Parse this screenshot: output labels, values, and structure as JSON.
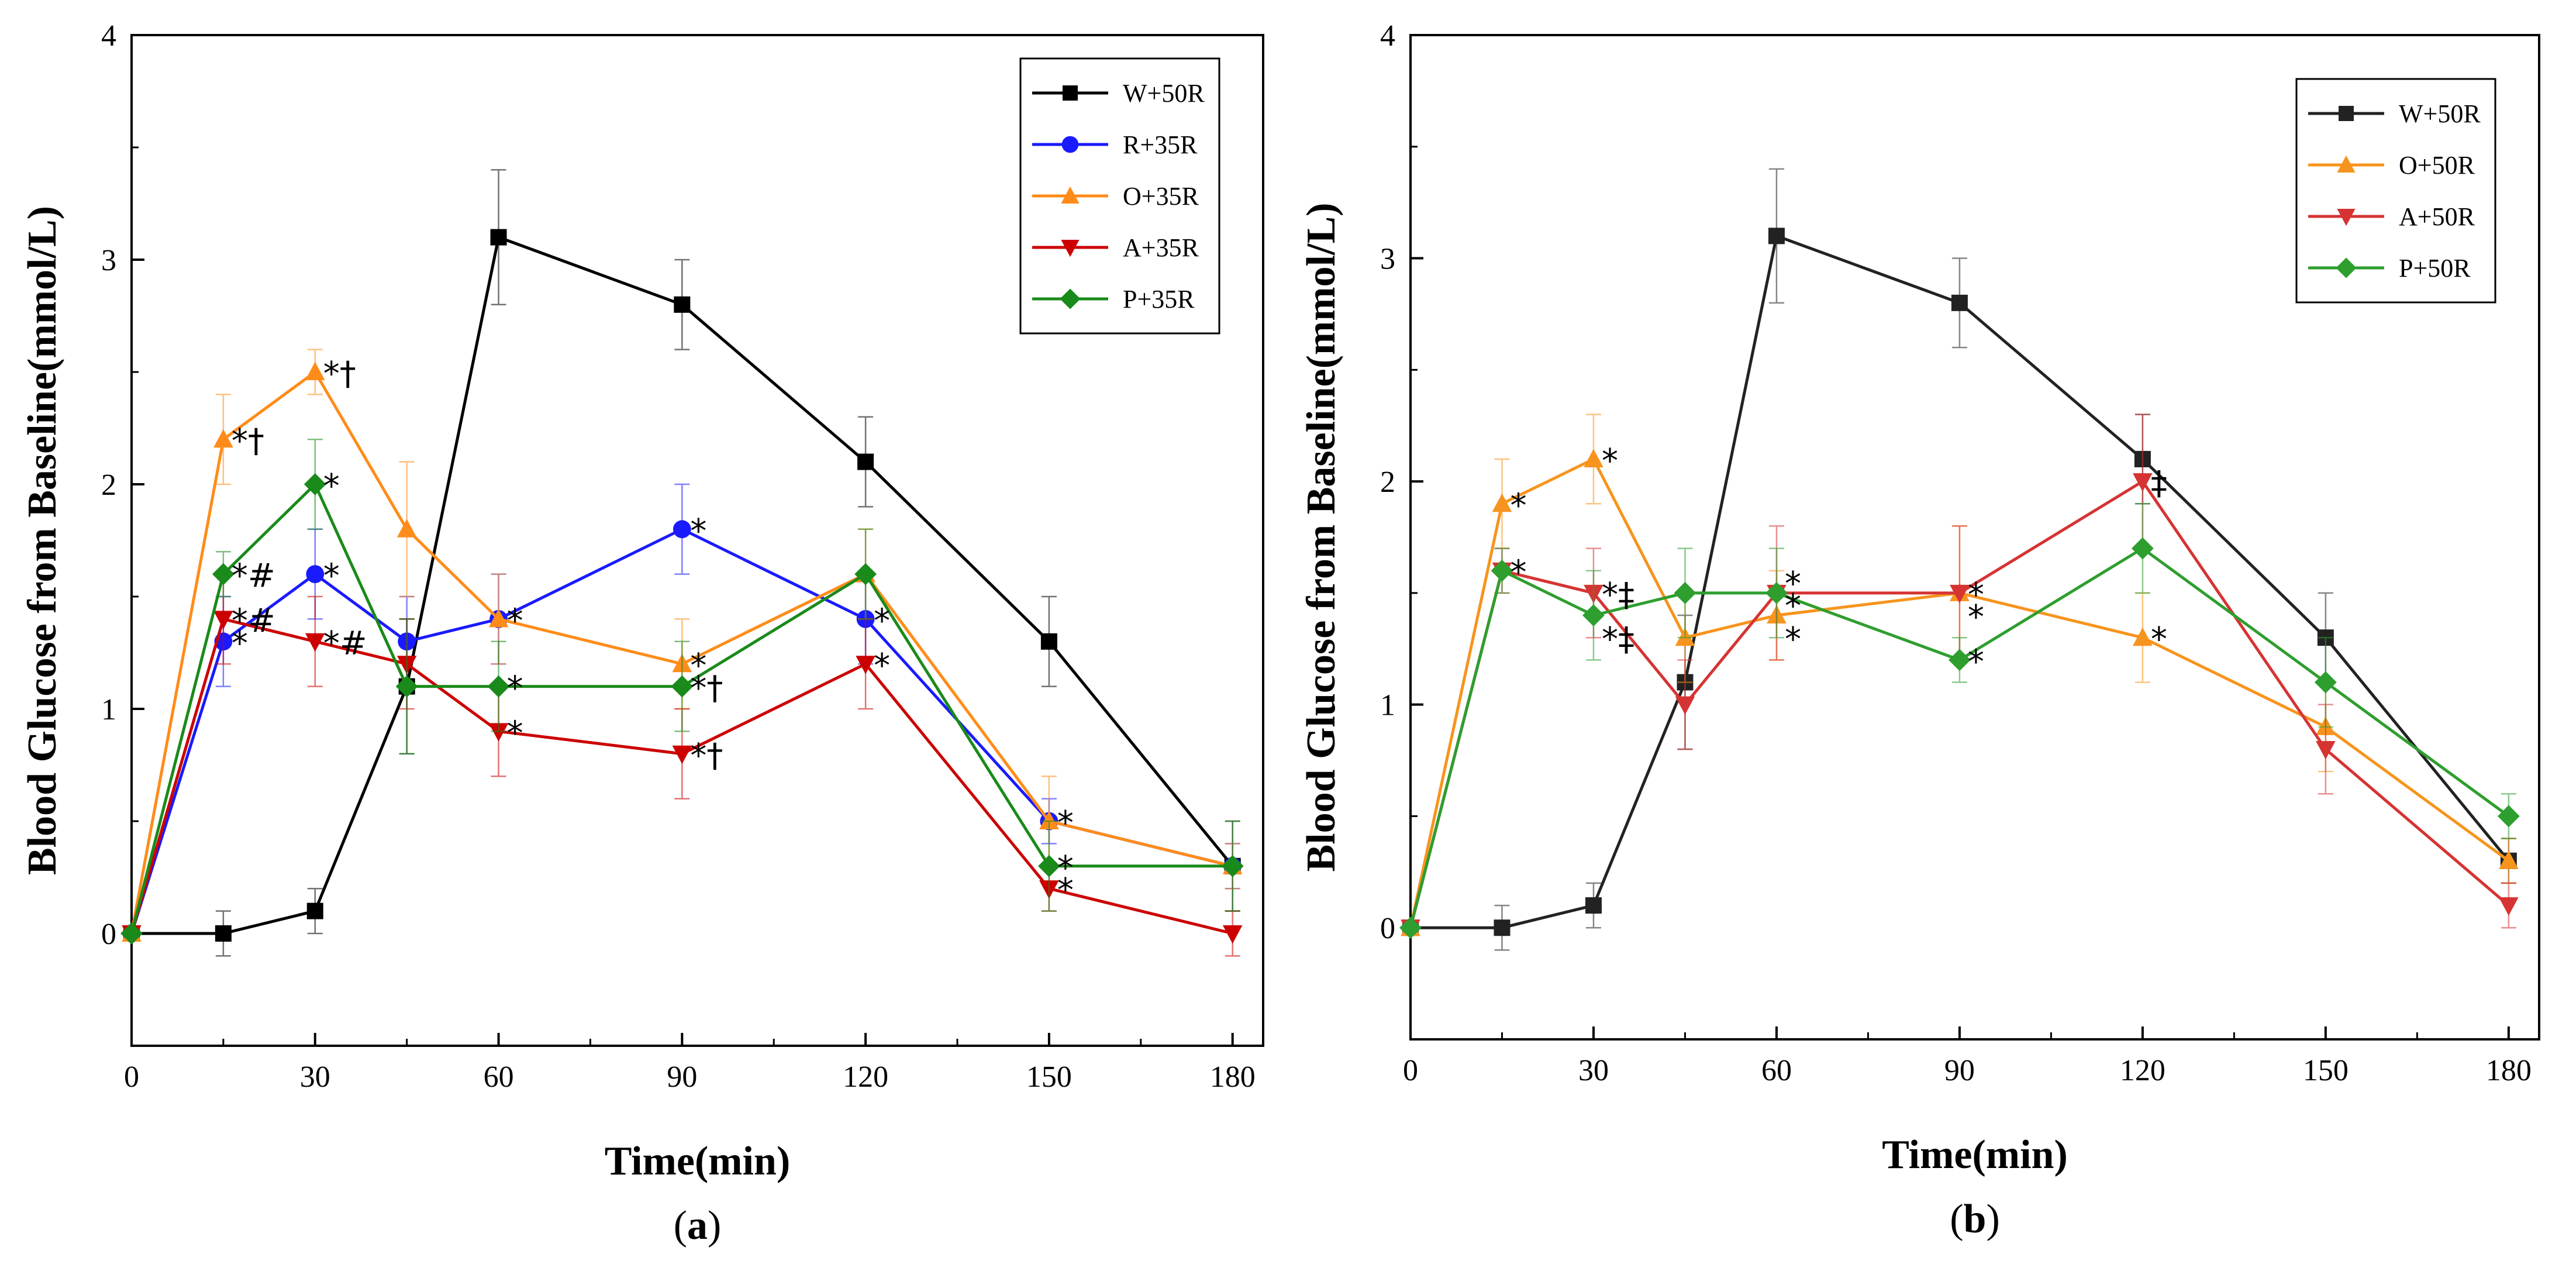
{
  "chart_data": [
    {
      "type": "line",
      "panel_label": "a",
      "xlabel": "Time(min)",
      "ylabel": "Blood Glucose from Baseline(mmol/L)",
      "xlim": [
        0,
        185
      ],
      "ylim": [
        -0.5,
        4
      ],
      "x_ticks": [
        0,
        30,
        60,
        90,
        120,
        150,
        180
      ],
      "y_ticks": [
        0,
        1,
        2,
        3,
        4
      ],
      "legend_position": "top-right",
      "series": [
        {
          "name": "W+50R",
          "color": "#000000",
          "marker": "square",
          "x": [
            0,
            15,
            30,
            45,
            60,
            90,
            120,
            150,
            180
          ],
          "y": [
            0,
            0,
            0.1,
            1.1,
            3.1,
            2.8,
            2.1,
            1.3,
            0.3
          ],
          "err": [
            0,
            0.1,
            0.1,
            0.3,
            0.3,
            0.2,
            0.2,
            0.2,
            0.2
          ]
        },
        {
          "name": "R+35R",
          "color": "#1a1aff",
          "marker": "circle",
          "x": [
            0,
            15,
            30,
            45,
            60,
            90,
            120,
            150,
            180
          ],
          "y": [
            0,
            1.3,
            1.6,
            1.3,
            1.4,
            1.8,
            1.4,
            0.5,
            0.3
          ],
          "err": [
            0,
            0.2,
            0.2,
            0.2,
            0.2,
            0.2,
            0.2,
            0.1,
            0.1
          ]
        },
        {
          "name": "O+35R",
          "color": "#ff8c1a",
          "marker": "triangle-up",
          "x": [
            0,
            15,
            30,
            45,
            60,
            90,
            120,
            150,
            180
          ],
          "y": [
            0,
            2.2,
            2.5,
            1.8,
            1.4,
            1.2,
            1.6,
            0.5,
            0.3
          ],
          "err": [
            0,
            0.2,
            0.1,
            0.3,
            0.2,
            0.2,
            0.2,
            0.2,
            0.1
          ]
        },
        {
          "name": "A+35R",
          "color": "#cc0000",
          "marker": "triangle-down",
          "x": [
            0,
            15,
            30,
            45,
            60,
            90,
            120,
            150,
            180
          ],
          "y": [
            0,
            1.4,
            1.3,
            1.2,
            0.9,
            0.8,
            1.2,
            0.2,
            0
          ],
          "err": [
            0,
            0.2,
            0.2,
            0.2,
            0.2,
            0.2,
            0.2,
            0.1,
            0.1
          ]
        },
        {
          "name": "P+35R",
          "color": "#1a8a1a",
          "marker": "diamond",
          "x": [
            0,
            15,
            30,
            45,
            60,
            90,
            120,
            150,
            180
          ],
          "y": [
            0,
            1.6,
            2.0,
            1.1,
            1.1,
            1.1,
            1.6,
            0.3,
            0.3
          ],
          "err": [
            0,
            0.1,
            0.2,
            0.3,
            0.2,
            0.2,
            0.2,
            0.2,
            0.2
          ]
        }
      ],
      "annotations": [
        {
          "x": 15,
          "y": 2.2,
          "text": "*†"
        },
        {
          "x": 30,
          "y": 2.5,
          "text": "*†"
        },
        {
          "x": 30,
          "y": 2.0,
          "text": "*"
        },
        {
          "x": 15,
          "y": 1.6,
          "text": "*#"
        },
        {
          "x": 30,
          "y": 1.6,
          "text": "*"
        },
        {
          "x": 15,
          "y": 1.4,
          "text": "*#"
        },
        {
          "x": 15,
          "y": 1.3,
          "text": "*"
        },
        {
          "x": 30,
          "y": 1.3,
          "text": "*#"
        },
        {
          "x": 60,
          "y": 1.4,
          "text": "*"
        },
        {
          "x": 60,
          "y": 1.1,
          "text": "*"
        },
        {
          "x": 60,
          "y": 0.9,
          "text": "*"
        },
        {
          "x": 90,
          "y": 1.8,
          "text": "*"
        },
        {
          "x": 90,
          "y": 1.2,
          "text": "*"
        },
        {
          "x": 90,
          "y": 1.1,
          "text": "*†"
        },
        {
          "x": 90,
          "y": 0.8,
          "text": "*†"
        },
        {
          "x": 120,
          "y": 1.4,
          "text": "*"
        },
        {
          "x": 120,
          "y": 1.2,
          "text": "*"
        },
        {
          "x": 150,
          "y": 0.5,
          "text": "*"
        },
        {
          "x": 150,
          "y": 0.3,
          "text": "*"
        },
        {
          "x": 150,
          "y": 0.2,
          "text": "*"
        }
      ]
    },
    {
      "type": "line",
      "panel_label": "b",
      "xlabel": "Time(min)",
      "ylabel": "Blood Glucose from Baseline(mmol/L)",
      "xlim": [
        0,
        185
      ],
      "ylim": [
        -0.5,
        4
      ],
      "x_ticks": [
        0,
        30,
        60,
        90,
        120,
        150,
        180
      ],
      "y_ticks": [
        0,
        1,
        2,
        3,
        4
      ],
      "legend_position": "top-right",
      "series": [
        {
          "name": "W+50R",
          "color": "#222222",
          "marker": "square",
          "x": [
            0,
            15,
            30,
            45,
            60,
            90,
            120,
            150,
            180
          ],
          "y": [
            0,
            0,
            0.1,
            1.1,
            3.1,
            2.8,
            2.1,
            1.3,
            0.3
          ],
          "err": [
            0,
            0.1,
            0.1,
            0.3,
            0.3,
            0.2,
            0.2,
            0.2,
            0.1
          ]
        },
        {
          "name": "O+50R",
          "color": "#f7941d",
          "marker": "triangle-up",
          "x": [
            0,
            15,
            30,
            45,
            60,
            90,
            120,
            150,
            180
          ],
          "y": [
            0,
            1.9,
            2.1,
            1.3,
            1.4,
            1.5,
            1.3,
            0.9,
            0.3
          ],
          "err": [
            0,
            0.2,
            0.2,
            0.2,
            0.2,
            0.3,
            0.2,
            0.2,
            0.1
          ]
        },
        {
          "name": "A+50R",
          "color": "#d63333",
          "marker": "triangle-down",
          "x": [
            0,
            15,
            30,
            45,
            60,
            90,
            120,
            150,
            180
          ],
          "y": [
            0,
            1.6,
            1.5,
            1.0,
            1.5,
            1.5,
            2.0,
            0.8,
            0.1
          ],
          "err": [
            0,
            0.1,
            0.2,
            0.2,
            0.3,
            0.3,
            0.3,
            0.2,
            0.1
          ]
        },
        {
          "name": "P+50R",
          "color": "#2e9e2e",
          "marker": "diamond",
          "x": [
            0,
            15,
            30,
            45,
            60,
            90,
            120,
            150,
            180
          ],
          "y": [
            0,
            1.6,
            1.4,
            1.5,
            1.5,
            1.2,
            1.7,
            1.1,
            0.5
          ],
          "err": [
            0,
            0.1,
            0.2,
            0.2,
            0.2,
            0.1,
            0.2,
            0.2,
            0.1
          ]
        }
      ],
      "annotations": [
        {
          "x": 15,
          "y": 1.9,
          "text": "*"
        },
        {
          "x": 30,
          "y": 2.1,
          "text": "*"
        },
        {
          "x": 15,
          "y": 1.6,
          "text": "*"
        },
        {
          "x": 30,
          "y": 1.5,
          "text": "*‡"
        },
        {
          "x": 30,
          "y": 1.3,
          "text": "*‡"
        },
        {
          "x": 60,
          "y": 1.55,
          "text": "*"
        },
        {
          "x": 60,
          "y": 1.45,
          "text": "*"
        },
        {
          "x": 60,
          "y": 1.3,
          "text": "*"
        },
        {
          "x": 90,
          "y": 1.5,
          "text": "*"
        },
        {
          "x": 90,
          "y": 1.4,
          "text": "*"
        },
        {
          "x": 90,
          "y": 1.2,
          "text": "*"
        },
        {
          "x": 120,
          "y": 2.0,
          "text": "‡"
        },
        {
          "x": 120,
          "y": 1.3,
          "text": "*"
        }
      ]
    }
  ]
}
